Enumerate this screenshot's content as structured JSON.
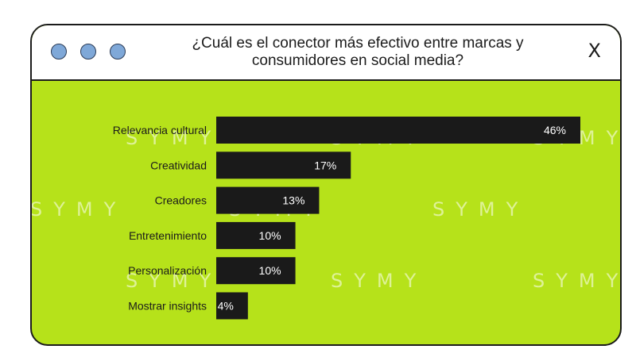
{
  "window": {
    "title_line1": "¿Cuál es el conector más efectivo entre marcas y",
    "title_line2": "consumidores en social media?",
    "close_glyph": "X",
    "dot_color": "#7fa8d8",
    "bg_color": "#b6e21a",
    "bar_color": "#1a1a1a"
  },
  "watermark": "SYMY",
  "chart_data": {
    "type": "bar",
    "orientation": "horizontal",
    "categories": [
      "Relevancia cultural",
      "Creatividad",
      "Creadores",
      "Entretenimiento",
      "Personalización",
      "Mostrar insights"
    ],
    "values": [
      46,
      17,
      13,
      10,
      10,
      4
    ],
    "value_labels": [
      "46%",
      "17%",
      "13%",
      "10%",
      "10%",
      "4%"
    ],
    "unit": "%",
    "xlim": [
      0,
      46
    ],
    "grid": false,
    "legend": "none"
  }
}
